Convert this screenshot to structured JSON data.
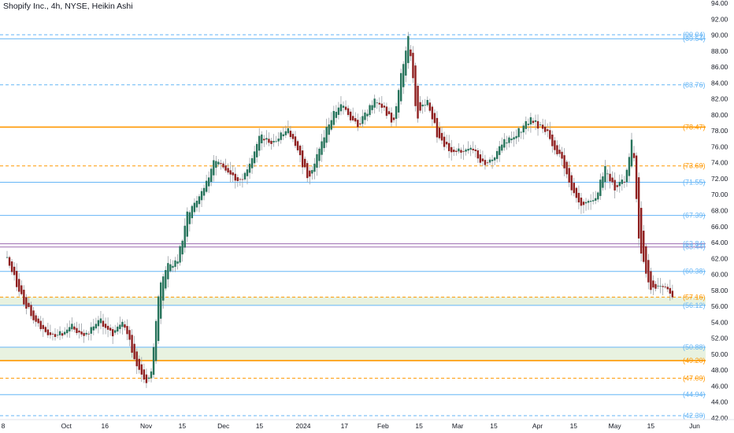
{
  "header": {
    "title": "Shopify Inc., 4h, NYSE, Heikin Ashi"
  },
  "colors": {
    "up": "#26735b",
    "down": "#8e1f1f",
    "wick": "#9aa0a6",
    "blue_line": "#64b5f6",
    "orange_line": "#ff9800",
    "purple_line": "#9c6cb0",
    "zone_fill": "#e8f2e0",
    "zone_border": "#b8d4a8",
    "text_blue": "#64b5f6",
    "text_orange": "#ff9800"
  },
  "chart_data": {
    "type": "candlestick",
    "title": "Shopify Inc., 4h, NYSE, Heikin Ashi",
    "y_axis": {
      "ticks": [
        "94.00",
        "92.00",
        "90.00",
        "88.00",
        "86.00",
        "84.00",
        "82.00",
        "80.00",
        "78.00",
        "76.00",
        "74.00",
        "72.00",
        "70.00",
        "68.00",
        "66.00",
        "64.00",
        "62.00",
        "60.00",
        "58.00",
        "56.00",
        "54.00",
        "52.00",
        "50.00",
        "48.00",
        "46.00",
        "44.00",
        "42.00"
      ]
    },
    "x_axis": {
      "ticks": [
        {
          "label": "8",
          "date": "2023-09-08"
        },
        {
          "label": "Oct",
          "date": "2023-10-01"
        },
        {
          "label": "16",
          "date": "2023-10-16"
        },
        {
          "label": "Nov",
          "date": "2023-11-01"
        },
        {
          "label": "15",
          "date": "2023-11-15"
        },
        {
          "label": "Dec",
          "date": "2023-12-01"
        },
        {
          "label": "15",
          "date": "2023-12-15"
        },
        {
          "label": "2024",
          "date": "2024-01-01"
        },
        {
          "label": "17",
          "date": "2024-01-17"
        },
        {
          "label": "Feb",
          "date": "2024-02-01"
        },
        {
          "label": "15",
          "date": "2024-02-15"
        },
        {
          "label": "Mar",
          "date": "2024-03-01"
        },
        {
          "label": "15",
          "date": "2024-03-15"
        },
        {
          "label": "Apr",
          "date": "2024-04-01"
        },
        {
          "label": "15",
          "date": "2024-04-15"
        },
        {
          "label": "May",
          "date": "2024-05-01"
        },
        {
          "label": "15",
          "date": "2024-05-15"
        },
        {
          "label": "Jun",
          "date": "2024-06-01"
        }
      ]
    },
    "levels": [
      {
        "value": 90.04,
        "label": "(90.04)",
        "style": "dashed",
        "color": "blue"
      },
      {
        "value": 89.54,
        "label": "(89.54)",
        "style": "solid",
        "color": "blue"
      },
      {
        "value": 83.76,
        "label": "(83.76)",
        "style": "dashed",
        "color": "blue"
      },
      {
        "value": 78.47,
        "label": "(78.47)",
        "style": "solid-thick",
        "color": "orange"
      },
      {
        "value": 73.6,
        "label": "(73.60)",
        "style": "dashed",
        "color": "orange"
      },
      {
        "value": 71.55,
        "label": "(71.55)",
        "style": "solid",
        "color": "blue"
      },
      {
        "value": 67.39,
        "label": "(67.39)",
        "style": "solid",
        "color": "blue"
      },
      {
        "value": 63.84,
        "label": "(63.84)",
        "style": "solid",
        "color": "purple"
      },
      {
        "value": 63.44,
        "label": "(63.44)",
        "style": "solid",
        "color": "purple"
      },
      {
        "value": 60.38,
        "label": "(60.38)",
        "style": "solid",
        "color": "blue"
      },
      {
        "value": 57.16,
        "label": "(57.16)",
        "style": "dashed",
        "color": "orange"
      },
      {
        "value": 56.12,
        "label": "(56.12)",
        "style": "solid",
        "color": "blue"
      },
      {
        "value": 50.88,
        "label": "(50.88)",
        "style": "solid",
        "color": "blue"
      },
      {
        "value": 49.2,
        "label": "(49.20)",
        "style": "solid-thick",
        "color": "orange"
      },
      {
        "value": 47.0,
        "label": "(47.00)",
        "style": "dashed",
        "color": "orange"
      },
      {
        "value": 44.94,
        "label": "(44.94)",
        "style": "solid",
        "color": "blue"
      },
      {
        "value": 42.3,
        "label": "(42.30)",
        "style": "dashed",
        "color": "blue"
      }
    ],
    "zones": [
      {
        "from": 56.12,
        "to": 57.16
      },
      {
        "from": 49.2,
        "to": 50.88
      }
    ],
    "series_keypoints": [
      {
        "date": "2023-09-08",
        "close": 62.0
      },
      {
        "date": "2023-09-13",
        "close": 57.5
      },
      {
        "date": "2023-09-19",
        "close": 54.0
      },
      {
        "date": "2023-09-26",
        "close": 52.0
      },
      {
        "date": "2023-10-03",
        "close": 53.5
      },
      {
        "date": "2023-10-09",
        "close": 52.3
      },
      {
        "date": "2023-10-13",
        "close": 54.5
      },
      {
        "date": "2023-10-19",
        "close": 52.5
      },
      {
        "date": "2023-10-23",
        "close": 54.0
      },
      {
        "date": "2023-10-28",
        "close": 49.0
      },
      {
        "date": "2023-11-01",
        "close": 46.5
      },
      {
        "date": "2023-11-03",
        "close": 48.0
      },
      {
        "date": "2023-11-06",
        "close": 58.0
      },
      {
        "date": "2023-11-09",
        "close": 61.0
      },
      {
        "date": "2023-11-13",
        "close": 61.5
      },
      {
        "date": "2023-11-17",
        "close": 67.5
      },
      {
        "date": "2023-11-23",
        "close": 70.5
      },
      {
        "date": "2023-11-28",
        "close": 74.5
      },
      {
        "date": "2023-12-04",
        "close": 72.5
      },
      {
        "date": "2023-12-08",
        "close": 71.5
      },
      {
        "date": "2023-12-12",
        "close": 74.5
      },
      {
        "date": "2023-12-15",
        "close": 77.5
      },
      {
        "date": "2023-12-20",
        "close": 76.5
      },
      {
        "date": "2023-12-26",
        "close": 78.5
      },
      {
        "date": "2024-01-03",
        "close": 72.0
      },
      {
        "date": "2024-01-09",
        "close": 77.5
      },
      {
        "date": "2024-01-15",
        "close": 81.5
      },
      {
        "date": "2024-01-22",
        "close": 78.5
      },
      {
        "date": "2024-01-29",
        "close": 82.0
      },
      {
        "date": "2024-02-05",
        "close": 79.0
      },
      {
        "date": "2024-02-08",
        "close": 85.0
      },
      {
        "date": "2024-02-11",
        "close": 90.0
      },
      {
        "date": "2024-02-14",
        "close": 79.5
      },
      {
        "date": "2024-02-18",
        "close": 82.0
      },
      {
        "date": "2024-02-22",
        "close": 77.5
      },
      {
        "date": "2024-02-28",
        "close": 75.0
      },
      {
        "date": "2024-03-06",
        "close": 76.0
      },
      {
        "date": "2024-03-12",
        "close": 73.5
      },
      {
        "date": "2024-03-19",
        "close": 76.5
      },
      {
        "date": "2024-03-25",
        "close": 78.0
      },
      {
        "date": "2024-03-29",
        "close": 79.5
      },
      {
        "date": "2024-04-05",
        "close": 77.5
      },
      {
        "date": "2024-04-10",
        "close": 74.5
      },
      {
        "date": "2024-04-15",
        "close": 70.0
      },
      {
        "date": "2024-04-19",
        "close": 68.5
      },
      {
        "date": "2024-04-24",
        "close": 70.0
      },
      {
        "date": "2024-04-27",
        "close": 73.5
      },
      {
        "date": "2024-05-01",
        "close": 70.5
      },
      {
        "date": "2024-05-05",
        "close": 72.0
      },
      {
        "date": "2024-05-08",
        "close": 77.5
      },
      {
        "date": "2024-05-10",
        "close": 65.5
      },
      {
        "date": "2024-05-12",
        "close": 61.5
      },
      {
        "date": "2024-05-15",
        "close": 58.5
      },
      {
        "date": "2024-05-20",
        "close": 58.5
      },
      {
        "date": "2024-05-24",
        "close": 57.2
      }
    ]
  }
}
